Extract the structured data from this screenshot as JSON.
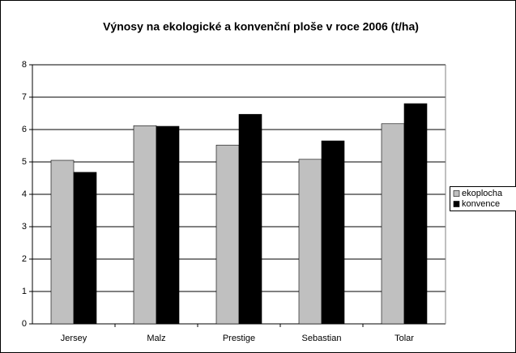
{
  "chart_data": {
    "type": "bar",
    "title": "Výnosy na ekologické a konvenční ploše v roce 2006 (t/ha)",
    "categories": [
      "Jersey",
      "Malz",
      "Prestige",
      "Sebastian",
      "Tolar"
    ],
    "series": [
      {
        "name": "ekoplocha",
        "color": "#c0c0c0",
        "values": [
          5.05,
          6.12,
          5.52,
          5.08,
          6.18
        ]
      },
      {
        "name": "konvence",
        "color": "#000000",
        "values": [
          4.68,
          6.1,
          6.47,
          5.65,
          6.8
        ]
      }
    ],
    "ylim": [
      0,
      8
    ],
    "yticks": [
      0,
      1,
      2,
      3,
      4,
      5,
      6,
      7,
      8
    ],
    "grid": true,
    "legend": "right"
  }
}
